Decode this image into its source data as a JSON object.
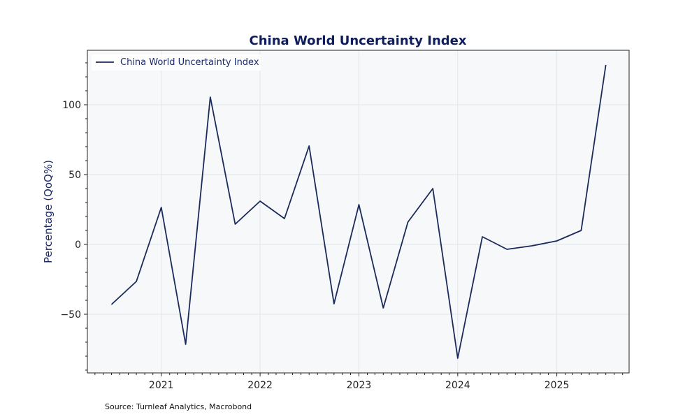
{
  "chart_data": {
    "type": "line",
    "title": "China World Uncertainty Index",
    "ylabel": "Percentage (QoQ%)",
    "xlabel": "",
    "ylim": [
      -92,
      139
    ],
    "xlim": [
      "2020-04-03",
      "2025-09-25"
    ],
    "x_ticks": [
      "2021",
      "2022",
      "2023",
      "2024",
      "2025"
    ],
    "y_ticks": [
      -50,
      0,
      50,
      100
    ],
    "grid": true,
    "legend": "top-left",
    "series": [
      {
        "name": "China World Uncertainty Index",
        "color": "#1b2a5a",
        "x": [
          "2020-07-01",
          "2020-10-01",
          "2021-01-01",
          "2021-04-01",
          "2021-07-01",
          "2021-10-01",
          "2022-01-01",
          "2022-04-01",
          "2022-07-01",
          "2022-10-01",
          "2023-01-01",
          "2023-04-01",
          "2023-07-01",
          "2023-10-01",
          "2024-01-01",
          "2024-04-01",
          "2024-07-01",
          "2024-10-01",
          "2025-01-01",
          "2025-04-01",
          "2025-07-01"
        ],
        "values": [
          -43,
          -26.5,
          26.5,
          -71.5,
          105.5,
          14.5,
          31,
          18.5,
          70.5,
          -42.5,
          28.5,
          -45.5,
          16,
          40,
          -81.5,
          5.5,
          -3.5,
          -1,
          2.5,
          10,
          128.5
        ]
      }
    ]
  },
  "footer": {
    "source": "Source: Turnleaf Analytics, Macrobond"
  },
  "colors": {
    "plot_background": "#f6f8fa",
    "grid": "#e3e6ea",
    "line": "#1b2a5a",
    "title": "#0f1d5c"
  }
}
